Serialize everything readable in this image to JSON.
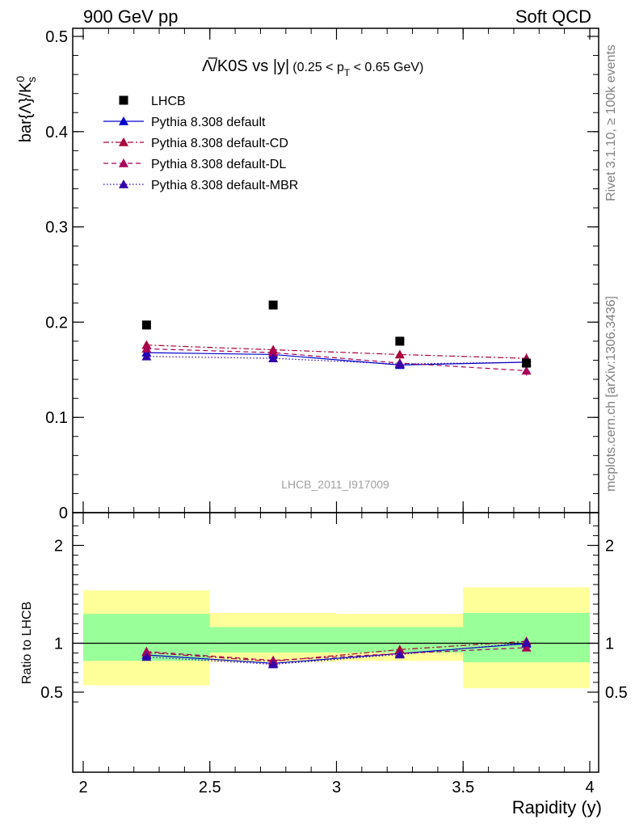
{
  "header": {
    "left": "900 GeV pp",
    "right": "Soft QCD"
  },
  "side_labels": {
    "rivet": "Rivet 3.1.10, ≥ 100k events",
    "mcplots": "mcplots.cern.ch [arXiv:1306.3436]"
  },
  "chart_data": {
    "type": "scatter",
    "title_main": "Λ̅/K0S vs |y|",
    "title_cut": "(0.25 < p",
    "title_cut_sub": "T",
    "title_cut_end": " < 0.65 GeV)",
    "analysis_id": "LHCB_2011_I917009",
    "ylabel_main": "bar{Λ}/K",
    "ylabel_sup": "0",
    "ylabel_sub": "s",
    "ylabel_ratio": "Ratio to LHCB",
    "xlabel": "Rapidity (y)",
    "xlim": [
      2,
      4
    ],
    "ylim_main": [
      0,
      0.51
    ],
    "ylim_ratio": [
      0.35,
      2.35
    ],
    "xticks": [
      "2",
      "2.5",
      "3",
      "3.5",
      "4"
    ],
    "xtick_values": [
      2,
      2.5,
      3,
      3.5,
      4
    ],
    "yticks_main": [
      "0",
      "0.1",
      "0.2",
      "0.3",
      "0.4",
      "0.5"
    ],
    "ytick_values_main": [
      0,
      0.1,
      0.2,
      0.3,
      0.4,
      0.5
    ],
    "yticks_ratio": [
      "0.5",
      "1",
      "2"
    ],
    "ytick_values_ratio": [
      0.5,
      1,
      2
    ],
    "x": [
      2.25,
      2.75,
      3.25,
      3.75
    ],
    "bin_edges": [
      2,
      2.5,
      3,
      3.5,
      4
    ],
    "data": {
      "name": "LHCB",
      "color": "#000000",
      "values": [
        0.197,
        0.218,
        0.18,
        0.157
      ]
    },
    "series": [
      {
        "name": "Pythia 8.308 default",
        "color": "#0000cc",
        "dash": "solid",
        "values": [
          0.168,
          0.166,
          0.155,
          0.158
        ],
        "errors": [
          0.003,
          0.003,
          0.003,
          0.004
        ],
        "ratio": [
          0.88,
          0.795,
          0.895,
          0.995
        ]
      },
      {
        "name": "Pythia 8.308 default-CD",
        "color": "#a8003a",
        "dash": "dashdot",
        "values": [
          0.176,
          0.171,
          0.166,
          0.162
        ],
        "errors": [
          0.004,
          0.004,
          0.004,
          0.005
        ],
        "ratio": [
          0.905,
          0.815,
          0.935,
          1.02
        ]
      },
      {
        "name": "Pythia 8.308 default-DL",
        "color": "#a8005a",
        "dash": "dashed",
        "values": [
          0.172,
          0.168,
          0.157,
          0.149
        ],
        "errors": [
          0.004,
          0.004,
          0.004,
          0.005
        ],
        "ratio": [
          0.915,
          0.825,
          0.895,
          0.955
        ]
      },
      {
        "name": "Pythia 8.308 default-MBR",
        "color": "#3300aa",
        "dash": "dotted",
        "values": [
          0.164,
          0.162,
          0.156,
          0.158
        ],
        "errors": [
          0.003,
          0.003,
          0.003,
          0.004
        ],
        "ratio": [
          0.86,
          0.785,
          0.885,
          1.005
        ]
      }
    ],
    "bands": {
      "outer_color": "#ffff99",
      "inner_color": "#99ff99",
      "outer_low": [
        0.57,
        0.81,
        0.82,
        0.54
      ],
      "outer_high": [
        1.54,
        1.31,
        1.3,
        1.57
      ],
      "inner_low": [
        0.82,
        0.905,
        0.905,
        0.805
      ],
      "inner_high": [
        1.3,
        1.165,
        1.165,
        1.31
      ]
    }
  }
}
